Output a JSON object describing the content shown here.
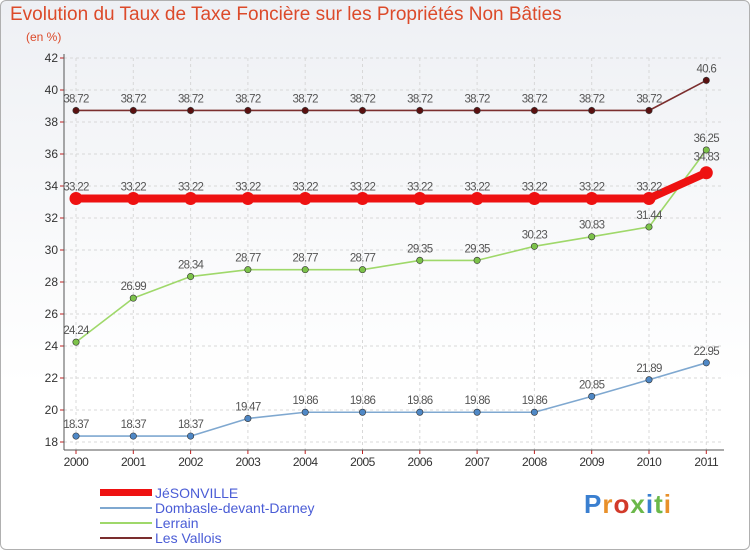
{
  "title": "Evolution du Taux de Taxe Foncière sur les Propriétés Non Bâties",
  "unit": "(en %)",
  "logo": "Proxiti",
  "colors": {
    "title": "#dc4a2a",
    "legend_text": "#4a5cd6",
    "axis_text": "#333333",
    "grid": "#d8d8d8",
    "logo": [
      "#3a7fd0",
      "#e8902a",
      "#d23a2a",
      "#6bb84a",
      "#3a7fd0",
      "#6bb84a",
      "#e8902a"
    ]
  },
  "chart_data": {
    "type": "line",
    "title": "Evolution du Taux de Taxe Foncière sur les Propriétés Non Bâties",
    "ylabel": "(en %)",
    "xlabel": "",
    "x": [
      "2000",
      "2001",
      "2002",
      "2003",
      "2004",
      "2005",
      "2006",
      "2007",
      "2008",
      "2009",
      "2010",
      "2011"
    ],
    "yticks": [
      18,
      20,
      22,
      24,
      26,
      28,
      30,
      32,
      34,
      36,
      38,
      40,
      42
    ],
    "ylim": [
      17.5,
      42
    ],
    "grid": true,
    "legend_position": "bottom-left",
    "series": [
      {
        "name": "Les Vallois",
        "color": "#7b2e2e",
        "marker": "#5a1010",
        "emphasis": false,
        "values": [
          38.72,
          38.72,
          38.72,
          38.72,
          38.72,
          38.72,
          38.72,
          38.72,
          38.72,
          38.72,
          38.72,
          40.6
        ],
        "labels": [
          "38.72",
          "38.72",
          "38.72",
          "38.72",
          "38.72",
          "38.72",
          "38.72",
          "38.72",
          "38.72",
          "38.72",
          "38.72",
          "40.6"
        ]
      },
      {
        "name": "Lerrain",
        "color": "#9fd86a",
        "marker": "#7cc24a",
        "emphasis": false,
        "values": [
          24.24,
          26.99,
          28.34,
          28.77,
          28.77,
          28.77,
          29.35,
          29.35,
          30.23,
          30.83,
          31.44,
          36.25
        ],
        "labels": [
          "24.24",
          "26.99",
          "28.34",
          "28.77",
          "28.77",
          "28.77",
          "29.35",
          "29.35",
          "30.23",
          "30.83",
          "31.44",
          "36.25"
        ]
      },
      {
        "name": "Dombasle-devant-Darney",
        "color": "#7fa8d0",
        "marker": "#4f88c6",
        "emphasis": false,
        "values": [
          18.37,
          18.37,
          18.37,
          19.47,
          19.86,
          19.86,
          19.86,
          19.86,
          19.86,
          20.85,
          21.89,
          22.95
        ],
        "labels": [
          "18.37",
          "18.37",
          "18.37",
          "19.47",
          "19.86",
          "19.86",
          "19.86",
          "19.86",
          "19.86",
          "20.85",
          "21.89",
          "22.95"
        ]
      },
      {
        "name": "JéSONVILLE",
        "color": "#ee1111",
        "marker": "#ee1111",
        "emphasis": true,
        "values": [
          33.22,
          33.22,
          33.22,
          33.22,
          33.22,
          33.22,
          33.22,
          33.22,
          33.22,
          33.22,
          33.22,
          34.83
        ],
        "labels": [
          "33.22",
          "33.22",
          "33.22",
          "33.22",
          "33.22",
          "33.22",
          "33.22",
          "33.22",
          "33.22",
          "33.22",
          "33.22",
          "34.83"
        ]
      }
    ],
    "legend": [
      "JéSONVILLE",
      "Dombasle-devant-Darney",
      "Lerrain",
      "Les Vallois"
    ]
  }
}
